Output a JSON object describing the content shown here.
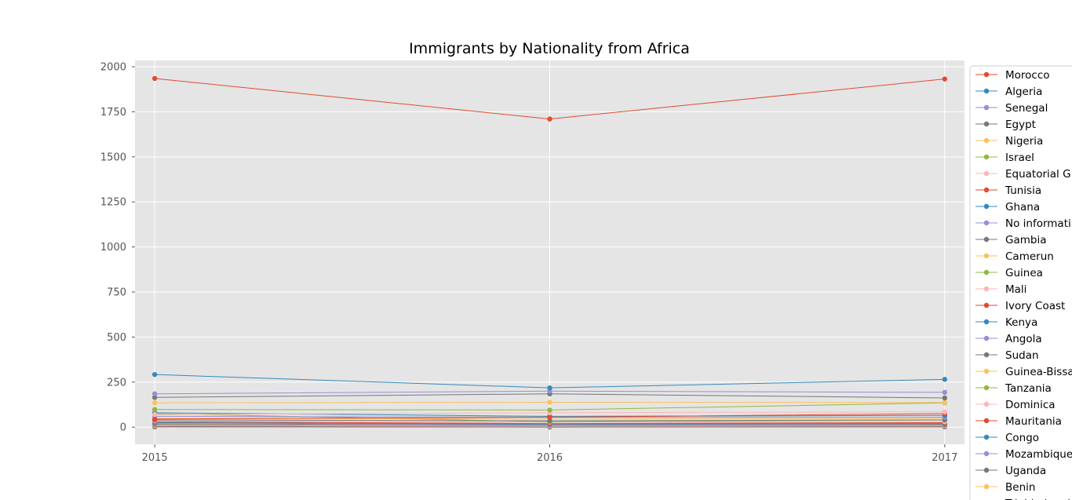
{
  "chart_data": {
    "type": "line",
    "title": "Immigrants by Nationality from Africa",
    "xlabel": "",
    "ylabel": "",
    "x": [
      2015,
      2016,
      2017
    ],
    "x_tick_labels": [
      "2015",
      "2016",
      "2017"
    ],
    "y_ticks": [
      0,
      250,
      500,
      750,
      1000,
      1250,
      1500,
      1750,
      2000
    ],
    "y_tick_labels": [
      "0",
      "250",
      "500",
      "750",
      "1000",
      "1250",
      "1500",
      "1750",
      "2000"
    ],
    "xlim": [
      2014.95,
      2017.05
    ],
    "ylim": [
      -95,
      2035
    ],
    "grid": true,
    "legend_placement": "outside-right",
    "series": [
      {
        "name": "Morocco",
        "color": "#E24A33",
        "values": [
          1935,
          1710,
          1932
        ]
      },
      {
        "name": "Algeria",
        "color": "#348ABD",
        "values": [
          292,
          218,
          265
        ]
      },
      {
        "name": "Senegal",
        "color": "#988ED5",
        "values": [
          185,
          200,
          193
        ]
      },
      {
        "name": "Egypt",
        "color": "#777777",
        "values": [
          165,
          185,
          162
        ]
      },
      {
        "name": "Nigeria",
        "color": "#FBC15E",
        "values": [
          135,
          138,
          137
        ]
      },
      {
        "name": "Israel",
        "color": "#8EBA42",
        "values": [
          98,
          95,
          135
        ]
      },
      {
        "name": "Equatorial G",
        "color": "#FFB5B8",
        "values": [
          70,
          80,
          85
        ]
      },
      {
        "name": "Tunisia",
        "color": "#E24A33",
        "values": [
          45,
          55,
          75
        ]
      },
      {
        "name": "Ghana",
        "color": "#348ABD",
        "values": [
          80,
          60,
          65
        ]
      },
      {
        "name": "No informati",
        "color": "#988ED5",
        "values": [
          60,
          55,
          55
        ]
      },
      {
        "name": "Gambia",
        "color": "#777777",
        "values": [
          40,
          35,
          40
        ]
      },
      {
        "name": "Camerun",
        "color": "#FBC15E",
        "values": [
          50,
          45,
          48
        ]
      },
      {
        "name": "Guinea",
        "color": "#8EBA42",
        "values": [
          75,
          30,
          40
        ]
      },
      {
        "name": "Mali",
        "color": "#FFB5B8",
        "values": [
          35,
          28,
          30
        ]
      },
      {
        "name": "Ivory Coast",
        "color": "#E24A33",
        "values": [
          30,
          20,
          25
        ]
      },
      {
        "name": "Kenya",
        "color": "#348ABD",
        "values": [
          25,
          18,
          20
        ]
      },
      {
        "name": "Angola",
        "color": "#988ED5",
        "values": [
          20,
          15,
          18
        ]
      },
      {
        "name": "Sudan",
        "color": "#777777",
        "values": [
          15,
          12,
          14
        ]
      },
      {
        "name": "Guinea-Bissa",
        "color": "#FBC15E",
        "values": [
          12,
          10,
          12
        ]
      },
      {
        "name": "Tanzania",
        "color": "#8EBA42",
        "values": [
          10,
          8,
          9
        ]
      },
      {
        "name": "Dominica",
        "color": "#FFB5B8",
        "values": [
          8,
          6,
          7
        ]
      },
      {
        "name": "Mauritania",
        "color": "#E24A33",
        "values": [
          6,
          5,
          6
        ]
      },
      {
        "name": "Congo",
        "color": "#348ABD",
        "values": [
          5,
          4,
          5
        ]
      },
      {
        "name": "Mozambique",
        "color": "#988ED5",
        "values": [
          4,
          3,
          4
        ]
      },
      {
        "name": "Uganda",
        "color": "#777777",
        "values": [
          2,
          1,
          2
        ]
      },
      {
        "name": "Benin",
        "color": "#FBC15E",
        "values": [
          3,
          2,
          3
        ]
      },
      {
        "name": "Trinidad and",
        "color": "#8EBA42",
        "values": [
          1,
          0,
          1
        ]
      }
    ]
  }
}
